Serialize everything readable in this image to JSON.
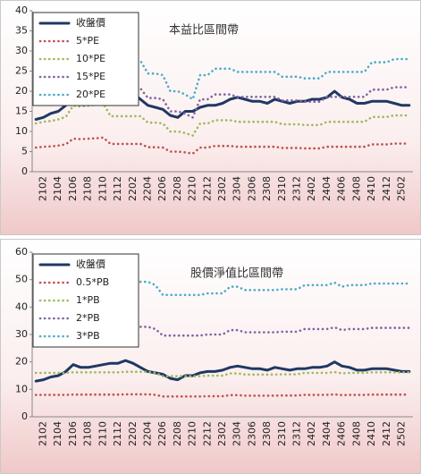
{
  "chart_data": [
    {
      "type": "line",
      "title": "本益比區間帶",
      "categories": [
        null,
        "2102",
        null,
        "2104",
        null,
        "2106",
        null,
        "2108",
        null,
        "2110",
        null,
        "2112",
        null,
        "2202",
        null,
        "2204",
        null,
        "2206",
        null,
        "2208",
        null,
        "2210",
        null,
        "2212",
        null,
        "2302",
        null,
        "2304",
        null,
        "2306",
        null,
        "2308",
        null,
        "2310",
        null,
        "2312",
        null,
        "2402",
        null,
        "2404",
        null,
        "2406",
        null,
        "2408",
        null,
        "2410",
        null,
        "2412",
        null,
        "2502",
        null
      ],
      "ylim": [
        0,
        40
      ],
      "yticks": [
        0,
        5,
        10,
        15,
        20,
        25,
        30,
        35,
        40
      ],
      "grid": false,
      "legend": "upper left",
      "series": [
        {
          "name": "收盤價",
          "color": "#1f3864",
          "style": "solid",
          "values": [
            13,
            13.5,
            14.5,
            15,
            16.5,
            19,
            18,
            18,
            18.5,
            19,
            19.5,
            19.5,
            20.5,
            19.5,
            18,
            16.5,
            16,
            15.5,
            14,
            13.5,
            15,
            15,
            16,
            16.5,
            16.5,
            17,
            18,
            18.5,
            18,
            17.5,
            17.5,
            17,
            18,
            17.5,
            17,
            17.5,
            17.5,
            18,
            18,
            18.5,
            20,
            18.5,
            18,
            17,
            17,
            17.5,
            17.5,
            17.5,
            17,
            16.5,
            16.5
          ]
        },
        {
          "name": "5*PE",
          "color": "#c0504d",
          "style": "dotted",
          "values": [
            6,
            6.2,
            6.3,
            6.5,
            6.8,
            8.2,
            8.1,
            8.2,
            8.3,
            8.5,
            6.9,
            6.9,
            6.9,
            6.9,
            6.9,
            6.1,
            6.1,
            6,
            5,
            5,
            4.8,
            4.5,
            6,
            6,
            6.4,
            6.4,
            6.4,
            6.2,
            6.2,
            6.2,
            6.2,
            6.2,
            6.2,
            5.9,
            5.9,
            5.9,
            5.8,
            5.8,
            5.8,
            6.2,
            6.2,
            6.2,
            6.2,
            6.2,
            6.2,
            6.8,
            6.8,
            6.8,
            7,
            7,
            7
          ]
        },
        {
          "name": "10*PE",
          "color": "#9bbb59",
          "style": "dotted",
          "values": [
            12,
            12.4,
            12.6,
            13,
            13.6,
            16.4,
            16.2,
            16.4,
            16.6,
            17,
            13.8,
            13.8,
            13.8,
            13.8,
            13.8,
            12.2,
            12.2,
            12,
            10,
            10,
            9.6,
            9,
            12,
            12,
            12.8,
            12.8,
            12.8,
            12.4,
            12.4,
            12.4,
            12.4,
            12.4,
            12.4,
            11.8,
            11.8,
            11.8,
            11.6,
            11.6,
            11.6,
            12.4,
            12.4,
            12.4,
            12.4,
            12.4,
            12.4,
            13.6,
            13.6,
            13.6,
            14,
            14,
            14
          ]
        },
        {
          "name": "15*PE",
          "color": "#8064a2",
          "style": "dotted",
          "values": [
            18,
            18.6,
            18.9,
            19.5,
            20.4,
            24.6,
            24.3,
            24.6,
            24.9,
            25.5,
            20.7,
            20.7,
            20.7,
            20.7,
            20.7,
            18.3,
            18.3,
            18,
            15,
            15,
            14.4,
            13.5,
            18,
            18,
            19.2,
            19.2,
            19.2,
            18.6,
            18.6,
            18.6,
            18.6,
            18.6,
            18.6,
            17.7,
            17.7,
            17.7,
            17.4,
            17.4,
            17.4,
            18.6,
            18.6,
            18.6,
            18.6,
            18.6,
            18.6,
            20.4,
            20.4,
            20.4,
            21,
            21,
            21
          ]
        },
        {
          "name": "20*PE",
          "color": "#4bacc6",
          "style": "dotted",
          "values": [
            24,
            24.8,
            25.2,
            26,
            27.2,
            32.8,
            32.4,
            32.8,
            33.2,
            34,
            27.6,
            27.6,
            27.6,
            27.6,
            27.6,
            24.4,
            24.4,
            24,
            20,
            20,
            19.2,
            18,
            24,
            24,
            25.6,
            25.6,
            25.6,
            24.8,
            24.8,
            24.8,
            24.8,
            24.8,
            24.8,
            23.6,
            23.6,
            23.6,
            23.2,
            23.2,
            23.2,
            24.8,
            24.8,
            24.8,
            24.8,
            24.8,
            24.8,
            27.2,
            27.2,
            27.2,
            28,
            28,
            28
          ]
        }
      ]
    },
    {
      "type": "line",
      "title": "股價淨值比區間帶",
      "categories": [
        null,
        "2102",
        null,
        "2104",
        null,
        "2106",
        null,
        "2108",
        null,
        "2110",
        null,
        "2112",
        null,
        "2202",
        null,
        "2204",
        null,
        "2206",
        null,
        "2208",
        null,
        "2210",
        null,
        "2212",
        null,
        "2302",
        null,
        "2304",
        null,
        "2306",
        null,
        "2308",
        null,
        "2310",
        null,
        "2312",
        null,
        "2402",
        null,
        "2404",
        null,
        "2406",
        null,
        "2408",
        null,
        "2410",
        null,
        "2412",
        null,
        "2502",
        null
      ],
      "ylim": [
        0,
        60
      ],
      "yticks": [
        0,
        10,
        20,
        30,
        40,
        50,
        60
      ],
      "grid": false,
      "legend": "upper left",
      "series": [
        {
          "name": "收盤價",
          "color": "#1f3864",
          "style": "solid",
          "values": [
            13,
            13.5,
            14.5,
            15,
            16.5,
            19,
            18,
            18,
            18.5,
            19,
            19.5,
            19.5,
            20.5,
            19.5,
            18,
            16.5,
            16,
            15.5,
            14,
            13.5,
            15,
            15,
            16,
            16.5,
            16.5,
            17,
            18,
            18.5,
            18,
            17.5,
            17.5,
            17,
            18,
            17.5,
            17,
            17.5,
            17.5,
            18,
            18,
            18.5,
            20,
            18.5,
            18,
            17,
            17,
            17.5,
            17.5,
            17.5,
            17,
            16.5,
            16.5
          ]
        },
        {
          "name": "0.5*PB",
          "color": "#c0504d",
          "style": "dotted",
          "values": [
            8,
            8,
            8,
            8,
            8,
            8.1,
            8.1,
            8.1,
            8.1,
            8.1,
            8.1,
            8.1,
            8.2,
            8.2,
            8.2,
            8.2,
            8,
            7.4,
            7.4,
            7.4,
            7.4,
            7.4,
            7.4,
            7.5,
            7.5,
            7.5,
            7.9,
            7.9,
            7.7,
            7.7,
            7.7,
            7.7,
            7.7,
            7.75,
            7.75,
            7.75,
            8,
            8,
            8,
            8,
            8.15,
            7.9,
            8,
            8,
            8,
            8.1,
            8.1,
            8.1,
            8.1,
            8.1,
            8.1
          ]
        },
        {
          "name": "1*PB",
          "color": "#9bbb59",
          "style": "dotted",
          "values": [
            16,
            16,
            16,
            16,
            16,
            16.2,
            16.2,
            16.2,
            16.2,
            16.2,
            16.2,
            16.2,
            16.4,
            16.4,
            16.4,
            16.4,
            16,
            14.8,
            14.8,
            14.8,
            14.8,
            14.8,
            14.8,
            15,
            15,
            15,
            15.8,
            15.8,
            15.4,
            15.4,
            15.4,
            15.4,
            15.4,
            15.5,
            15.5,
            15.5,
            16,
            16,
            16,
            16,
            16.3,
            15.8,
            16,
            16,
            16,
            16.2,
            16.2,
            16.2,
            16.2,
            16.2,
            16.2
          ]
        },
        {
          "name": "2*PB",
          "color": "#8064a2",
          "style": "dotted",
          "values": [
            32,
            32,
            32,
            32,
            32,
            32.4,
            32.4,
            32.4,
            32.4,
            32.4,
            32.4,
            32.4,
            32.8,
            32.8,
            32.8,
            32.8,
            32,
            29.6,
            29.6,
            29.6,
            29.6,
            29.6,
            29.6,
            30,
            30,
            30,
            31.6,
            31.6,
            30.8,
            30.8,
            30.8,
            30.8,
            30.8,
            31,
            31,
            31,
            32,
            32,
            32,
            32,
            32.6,
            31.6,
            32,
            32,
            32,
            32.4,
            32.4,
            32.4,
            32.4,
            32.4,
            32.4
          ]
        },
        {
          "name": "3*PB",
          "color": "#4bacc6",
          "style": "dotted",
          "values": [
            48,
            48,
            48,
            48,
            48,
            48.6,
            48.6,
            48.6,
            48.6,
            48.6,
            48.6,
            48.6,
            49.2,
            49.2,
            49.2,
            49.2,
            48,
            44.4,
            44.4,
            44.4,
            44.4,
            44.4,
            44.4,
            45,
            45,
            45,
            47.4,
            47.4,
            46.2,
            46.2,
            46.2,
            46.2,
            46.2,
            46.5,
            46.5,
            46.5,
            48,
            48,
            48,
            48,
            48.9,
            47.4,
            48,
            48,
            48,
            48.6,
            48.6,
            48.6,
            48.6,
            48.6,
            48.6
          ]
        }
      ]
    }
  ]
}
